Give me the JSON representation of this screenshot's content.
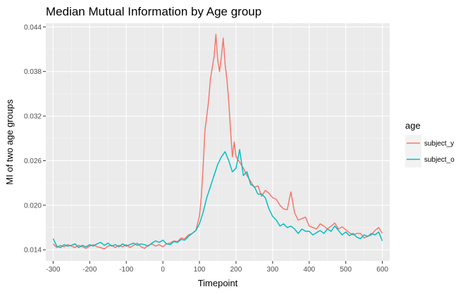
{
  "chart_data": {
    "type": "line",
    "title": "Median Mutual Information by Age group",
    "xlabel": "Timepoint",
    "ylabel": "MI of two age groups",
    "xlim": [
      -320,
      620
    ],
    "ylim": [
      0.0125,
      0.0445
    ],
    "x_ticks": [
      -300,
      -200,
      -100,
      0,
      100,
      200,
      300,
      400,
      500,
      600
    ],
    "x_tick_labels": [
      "-300",
      "-200",
      "-100",
      "0",
      "100",
      "200",
      "300",
      "400",
      "500",
      "600"
    ],
    "y_ticks": [
      0.014,
      0.02,
      0.026,
      0.032,
      0.038,
      0.044
    ],
    "y_tick_labels": [
      "0.014",
      "0.020",
      "0.026",
      "0.032",
      "0.038",
      "0.044"
    ],
    "grid": true,
    "legend": {
      "title": "age",
      "position": "right"
    },
    "series": [
      {
        "name": "subject_y",
        "color": "#F8766D",
        "x": [
          -300,
          -290,
          -280,
          -270,
          -260,
          -250,
          -240,
          -230,
          -220,
          -210,
          -200,
          -190,
          -180,
          -170,
          -160,
          -150,
          -140,
          -130,
          -120,
          -110,
          -100,
          -90,
          -80,
          -70,
          -60,
          -50,
          -40,
          -30,
          -20,
          -10,
          0,
          10,
          20,
          30,
          40,
          50,
          60,
          70,
          80,
          90,
          100,
          105,
          110,
          115,
          120,
          125,
          130,
          135,
          140,
          145,
          150,
          155,
          160,
          165,
          170,
          175,
          180,
          185,
          190,
          195,
          200,
          210,
          220,
          230,
          240,
          250,
          260,
          270,
          280,
          290,
          300,
          310,
          320,
          330,
          340,
          350,
          360,
          370,
          380,
          390,
          400,
          410,
          420,
          430,
          440,
          450,
          460,
          470,
          480,
          490,
          500,
          510,
          520,
          530,
          540,
          550,
          560,
          570,
          580,
          590,
          600
        ],
        "y": [
          0.0148,
          0.0143,
          0.0146,
          0.0144,
          0.0147,
          0.0145,
          0.0143,
          0.0146,
          0.0144,
          0.0142,
          0.0145,
          0.0147,
          0.0144,
          0.0143,
          0.0141,
          0.0145,
          0.0146,
          0.0143,
          0.0146,
          0.0144,
          0.0147,
          0.0143,
          0.0146,
          0.0149,
          0.0144,
          0.0142,
          0.0146,
          0.0148,
          0.0145,
          0.0147,
          0.0144,
          0.0148,
          0.0149,
          0.0152,
          0.0151,
          0.0156,
          0.0155,
          0.016,
          0.0162,
          0.0166,
          0.0185,
          0.021,
          0.025,
          0.03,
          0.032,
          0.034,
          0.037,
          0.0385,
          0.04,
          0.043,
          0.0395,
          0.038,
          0.04,
          0.0425,
          0.039,
          0.037,
          0.034,
          0.03,
          0.0265,
          0.0285,
          0.0265,
          0.0258,
          0.025,
          0.024,
          0.0232,
          0.0224,
          0.0226,
          0.0212,
          0.022,
          0.0216,
          0.021,
          0.0208,
          0.02,
          0.0195,
          0.0194,
          0.0218,
          0.019,
          0.018,
          0.0182,
          0.0184,
          0.0172,
          0.017,
          0.0168,
          0.0175,
          0.0172,
          0.0168,
          0.0172,
          0.0176,
          0.0168,
          0.0171,
          0.0167,
          0.0163,
          0.016,
          0.0162,
          0.0162,
          0.0156,
          0.0158,
          0.016,
          0.0166,
          0.017,
          0.0162
        ]
      },
      {
        "name": "subject_o",
        "color": "#00BFC4",
        "x": [
          -300,
          -290,
          -280,
          -270,
          -260,
          -250,
          -240,
          -230,
          -220,
          -210,
          -200,
          -190,
          -180,
          -170,
          -160,
          -150,
          -140,
          -130,
          -120,
          -110,
          -100,
          -90,
          -80,
          -70,
          -60,
          -50,
          -40,
          -30,
          -20,
          -10,
          0,
          10,
          20,
          30,
          40,
          50,
          60,
          70,
          80,
          90,
          100,
          110,
          120,
          130,
          140,
          150,
          160,
          170,
          180,
          190,
          200,
          210,
          220,
          230,
          240,
          250,
          260,
          270,
          280,
          290,
          300,
          310,
          320,
          330,
          340,
          350,
          360,
          370,
          380,
          390,
          400,
          410,
          420,
          430,
          440,
          450,
          460,
          470,
          480,
          490,
          500,
          510,
          520,
          530,
          540,
          550,
          560,
          570,
          580,
          590,
          600
        ],
        "y": [
          0.0155,
          0.0145,
          0.0143,
          0.0147,
          0.0145,
          0.0146,
          0.0148,
          0.0143,
          0.0146,
          0.0144,
          0.0147,
          0.0145,
          0.0148,
          0.015,
          0.0146,
          0.0149,
          0.0145,
          0.0147,
          0.0144,
          0.0148,
          0.0145,
          0.0147,
          0.0149,
          0.0146,
          0.0148,
          0.0147,
          0.0145,
          0.0149,
          0.0152,
          0.015,
          0.0153,
          0.0148,
          0.0147,
          0.0151,
          0.015,
          0.0154,
          0.0153,
          0.0158,
          0.0162,
          0.0166,
          0.0175,
          0.019,
          0.021,
          0.0225,
          0.024,
          0.0255,
          0.0265,
          0.0272,
          0.026,
          0.0245,
          0.025,
          0.0275,
          0.024,
          0.0245,
          0.0228,
          0.0225,
          0.0215,
          0.0215,
          0.021,
          0.0195,
          0.0185,
          0.018,
          0.0172,
          0.0175,
          0.017,
          0.0172,
          0.0168,
          0.0162,
          0.0168,
          0.0165,
          0.0165,
          0.016,
          0.0163,
          0.0166,
          0.0162,
          0.0168,
          0.0165,
          0.0172,
          0.0166,
          0.016,
          0.0164,
          0.0159,
          0.0162,
          0.0157,
          0.0155,
          0.016,
          0.0158,
          0.0162,
          0.016,
          0.0164,
          0.0152
        ]
      }
    ]
  }
}
